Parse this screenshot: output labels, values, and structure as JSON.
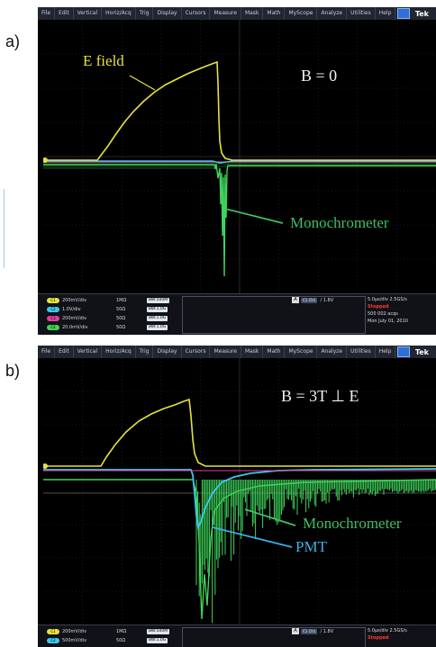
{
  "panels": [
    {
      "label": "a)",
      "menubar": {
        "items": [
          "File",
          "Edit",
          "Vertical",
          "Horiz/Acq",
          "Trig",
          "Display",
          "Cursors",
          "Measure",
          "Mask",
          "Math",
          "MyScope",
          "Analyze",
          "Utilities",
          "Help"
        ],
        "brand": "Tek"
      },
      "annotations": {
        "e_field": "E field",
        "condition": "B = 0",
        "monochrometer": "Monochrometer"
      },
      "channels": [
        {
          "tag": "C1",
          "scale": "200mV/div",
          "imp": "1MΩ",
          "bw": "BW:500M",
          "color": "#e8e23a"
        },
        {
          "tag": "C2",
          "scale": "1.0V/div",
          "imp": "50Ω",
          "bw": "BW:1.0G",
          "color": "#3cc8f0"
        },
        {
          "tag": "C3",
          "scale": "200mV/div",
          "imp": "50Ω",
          "bw": "BW:1.0G",
          "color": "#e040a0"
        },
        {
          "tag": "C4",
          "scale": "20.0mV/div",
          "imp": "50Ω",
          "bw": "BW:1.0G",
          "color": "#3fd45a"
        }
      ],
      "trigger": {
        "ch": "A",
        "pill": "C1 Ch1",
        "level": "/ 1.8V"
      },
      "acq": {
        "rate": "5.0µs/div  2.5GS/s",
        "state": "Stopped",
        "acqs": "500 002 acqs",
        "date": "Mon   July 01, 2010"
      }
    },
    {
      "label": "b)",
      "menubar": {
        "items": [
          "File",
          "Edit",
          "Vertical",
          "Horiz/Acq",
          "Trig",
          "Display",
          "Cursors",
          "Measure",
          "Mask",
          "Math",
          "MyScope",
          "Analyze",
          "Utilities",
          "Help"
        ],
        "brand": "Tek"
      },
      "annotations": {
        "condition": "B = 3T ⊥ E",
        "monochrometer": "Monochrometer",
        "pmt": "PMT"
      },
      "channels": [
        {
          "tag": "C1",
          "scale": "200mV/div",
          "imp": "1MΩ",
          "bw": "BW:500M",
          "color": "#e8e23a"
        },
        {
          "tag": "C2",
          "scale": "500mV/div",
          "imp": "50Ω",
          "bw": "BW:1.0G",
          "color": "#3cc8f0"
        }
      ],
      "trigger": {
        "ch": "A",
        "pill": "C1 Ch1",
        "level": "/ 1.8V"
      },
      "acq": {
        "rate": "5.0µs/div  2.5GS/s",
        "state": "Stopped"
      }
    }
  ],
  "colors": {
    "e_field": "#e8e23a",
    "pmt": "#3cc8f0",
    "magenta": "#e040a0",
    "mono": "#3fd45a",
    "annot_mono": "#3fbf66",
    "annot_pmt": "#39b2e6"
  }
}
